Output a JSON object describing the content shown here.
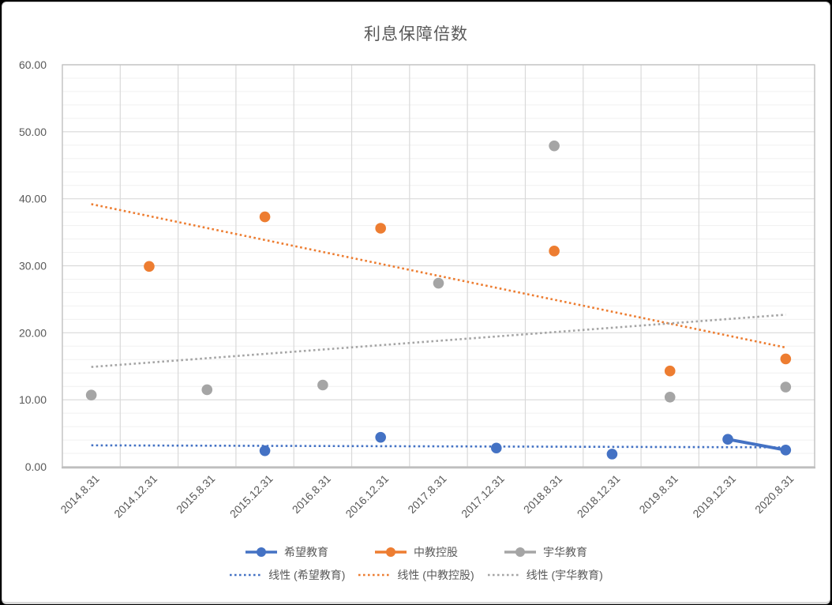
{
  "chart_data": {
    "type": "scatter",
    "title": "利息保障倍数",
    "categories": [
      "2014.8.31",
      "2014.12.31",
      "2015.8.31",
      "2015.12.31",
      "2016.8.31",
      "2016.12.31",
      "2017.8.31",
      "2017.12.31",
      "2018.8.31",
      "2018.12.31",
      "2019.8.31",
      "2019.12.31",
      "2020.8.31"
    ],
    "y_axis": {
      "min": 0,
      "max": 60,
      "major_step": 10,
      "minor_step": 2,
      "tick_labels": [
        "0.00",
        "10.00",
        "20.00",
        "30.00",
        "40.00",
        "50.00",
        "60.00"
      ]
    },
    "series": [
      {
        "name": "希望教育",
        "color": "#4472C4",
        "values": [
          null,
          null,
          null,
          2.4,
          null,
          4.4,
          null,
          2.8,
          null,
          1.9,
          null,
          4.1,
          2.5
        ]
      },
      {
        "name": "中教控股",
        "color": "#ED7D31",
        "values": [
          null,
          29.9,
          null,
          37.3,
          null,
          35.6,
          null,
          null,
          32.2,
          null,
          14.3,
          null,
          16.1
        ]
      },
      {
        "name": "宇华教育",
        "color": "#A5A5A5",
        "values": [
          10.7,
          null,
          11.5,
          null,
          12.2,
          null,
          27.4,
          null,
          47.9,
          null,
          10.4,
          null,
          11.9
        ]
      }
    ],
    "trendlines": [
      {
        "name": "线性 (希望教育)",
        "color": "#4472C4",
        "start": 3.2,
        "end": 2.9
      },
      {
        "name": "线性 (中教控股)",
        "color": "#ED7D31",
        "start": 39.2,
        "end": 17.8
      },
      {
        "name": "线性 (宇华教育)",
        "color": "#A5A5A5",
        "start": 14.9,
        "end": 22.7
      }
    ],
    "legend_position": "bottom",
    "grid": "major-and-minor",
    "colors": {
      "major_grid": "#D9D9D9",
      "minor_grid": "#F0F0F0",
      "axis_line": "#BFBFBF",
      "text": "#595959"
    }
  }
}
